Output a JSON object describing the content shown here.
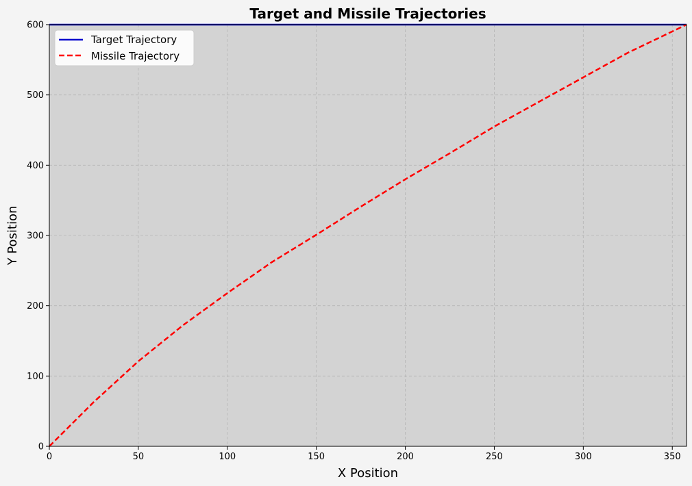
{
  "chart_data": {
    "type": "line",
    "title": "Target and Missile Trajectories",
    "xlabel": "X Position",
    "ylabel": "Y Position",
    "xlim": [
      0,
      358
    ],
    "ylim": [
      0,
      600
    ],
    "xticks": [
      0,
      50,
      100,
      150,
      200,
      250,
      300,
      350
    ],
    "yticks": [
      0,
      100,
      200,
      300,
      400,
      500,
      600
    ],
    "grid": true,
    "plot_background": "#d3d3d3",
    "figure_background": "#f4f4f4",
    "legend_position": "upper-left",
    "series": [
      {
        "name": "Target Trajectory",
        "color": "#0000cd",
        "style": "solid",
        "x": [
          0,
          358
        ],
        "y": [
          600,
          600
        ]
      },
      {
        "name": "Missile Trajectory",
        "color": "#ff0000",
        "style": "dashed",
        "x": [
          0,
          25,
          50,
          75,
          100,
          125,
          150,
          175,
          200,
          225,
          250,
          275,
          300,
          325,
          358
        ],
        "y": [
          0,
          63,
          121,
          172,
          218,
          262,
          301,
          341,
          380,
          417,
          455,
          490,
          525,
          560,
          600
        ]
      }
    ]
  }
}
